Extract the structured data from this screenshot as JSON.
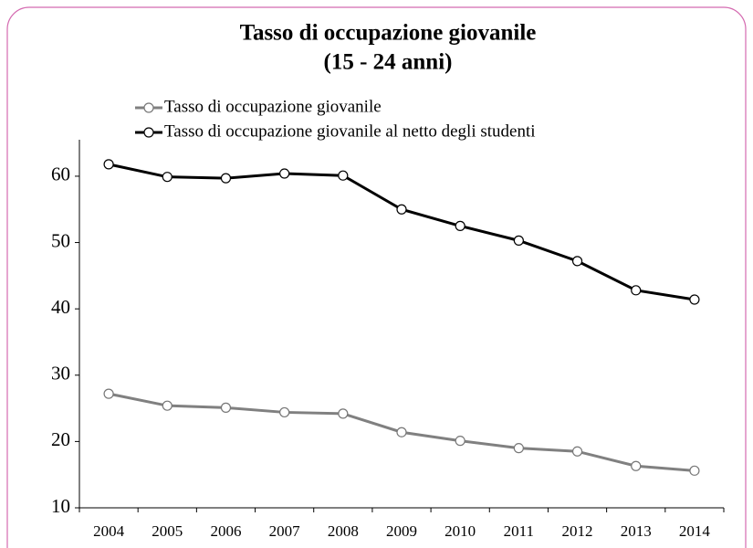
{
  "chart_data": {
    "type": "line",
    "title": "Tasso di occupazione giovanile",
    "subtitle": "(15 - 24 anni)",
    "categories": [
      "2004",
      "2005",
      "2006",
      "2007",
      "2008",
      "2009",
      "2010",
      "2011",
      "2012",
      "2013",
      "2014"
    ],
    "series": [
      {
        "name": "Tasso di occupazione giovanile",
        "color": "#808080",
        "values": [
          27.2,
          25.4,
          25.1,
          24.4,
          24.2,
          21.4,
          20.1,
          19.0,
          18.5,
          16.3,
          15.6
        ]
      },
      {
        "name": "Tasso di occupazione giovanile al netto degli studenti",
        "color": "#000000",
        "values": [
          61.8,
          59.9,
          59.7,
          60.4,
          60.1,
          55.0,
          52.5,
          50.3,
          47.2,
          42.8,
          41.4
        ]
      }
    ],
    "ylim": [
      10,
      65.5
    ],
    "yticks": [
      10,
      20,
      30,
      40,
      50,
      60
    ],
    "legend": "top-left"
  }
}
